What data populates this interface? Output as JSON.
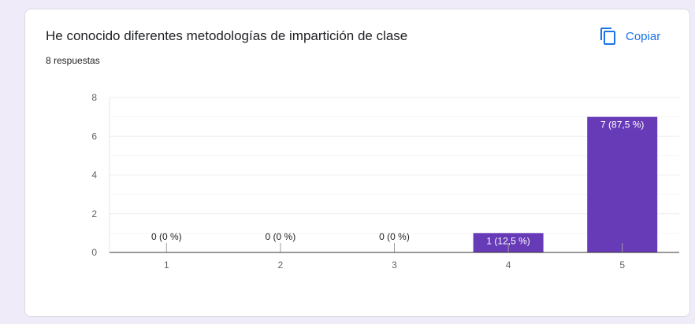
{
  "question": {
    "title": "He conocido diferentes metodologías de impartición de clase",
    "responses": "8 respuestas",
    "copy_label": "Copiar"
  },
  "colors": {
    "bar": "#673ab7",
    "accent": "#1a73e8",
    "axis_text": "#5f6368",
    "grid": "#eeeeee"
  },
  "icons": {
    "copy": "copy-icon"
  },
  "chart_data": {
    "type": "bar",
    "categories": [
      "1",
      "2",
      "3",
      "4",
      "5"
    ],
    "values": [
      0,
      0,
      0,
      1,
      7
    ],
    "data_labels": [
      "0 (0 %)",
      "0 (0 %)",
      "0 (0 %)",
      "1 (12,5 %)",
      "7 (87,5 %)"
    ],
    "y_ticks": [
      0,
      2,
      4,
      6,
      8
    ],
    "ylim": [
      0,
      8
    ],
    "grid": true,
    "legend": "none"
  }
}
